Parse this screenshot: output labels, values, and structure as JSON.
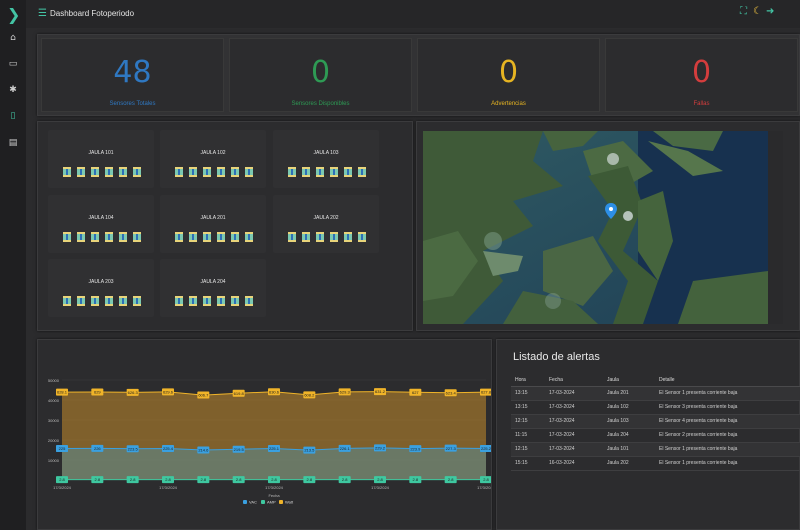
{
  "app": {
    "title": "Dashboard Fotoperiodo",
    "logo_icon": "chevron-right-logo",
    "header_actions": [
      {
        "name": "fullscreen-icon",
        "glyph": "⛶",
        "color": "#43c4a4"
      },
      {
        "name": "theme-moon-icon",
        "glyph": "☾",
        "color": "#f2c440"
      },
      {
        "name": "logout-icon",
        "glyph": "➜",
        "color": "#43c4a4"
      }
    ]
  },
  "sidebar": {
    "items": [
      {
        "icon": "home-icon",
        "glyph": "⌂",
        "active": false
      },
      {
        "icon": "monitor-icon",
        "glyph": "▭",
        "active": false
      },
      {
        "icon": "settings-icon",
        "glyph": "✱",
        "active": false
      },
      {
        "icon": "device-icon",
        "glyph": "▯",
        "active": true
      },
      {
        "icon": "report-icon",
        "glyph": "▤",
        "active": false
      }
    ]
  },
  "kpis": [
    {
      "value": "48",
      "label": "Sensores Totales",
      "color": "#2f78c2"
    },
    {
      "value": "0",
      "label": "Sensores Disponibles",
      "color": "#2e9a54"
    },
    {
      "value": "0",
      "label": "Advertencias",
      "color": "#e6b422"
    },
    {
      "value": "0",
      "label": "Fallas",
      "color": "#d43d3d"
    }
  ],
  "cages": [
    {
      "name": "JAULA 101",
      "sensors": 6
    },
    {
      "name": "JAULA 102",
      "sensors": 6
    },
    {
      "name": "JAULA 103",
      "sensors": 6
    },
    {
      "name": "JAULA 104",
      "sensors": 6
    },
    {
      "name": "JAULA 201",
      "sensors": 6
    },
    {
      "name": "JAULA 202",
      "sensors": 6
    },
    {
      "name": "JAULA 203",
      "sensors": 6
    },
    {
      "name": "JAULA 204",
      "sensors": 6
    }
  ],
  "map": {
    "marker_icon": "location-pin-icon",
    "marker_color": "#2d8fe6"
  },
  "chart_data": {
    "type": "area",
    "title": "",
    "xlabel": "Fecha",
    "ylabel": "",
    "ylim": [
      0,
      60000
    ],
    "yticks": [
      "0",
      "10000",
      "20000",
      "30000",
      "40000",
      "50000"
    ],
    "x_tick_labels": [
      "17/3/2024",
      "17/3/2024",
      "17/3/2024",
      "17/3/2024",
      "17/3/2024"
    ],
    "legend_position": "bottom",
    "series": [
      {
        "name": "VAC",
        "color": "#3aa0e0",
        "values": [
          225.0,
          226.0,
          223.5,
          225.4,
          214.6,
          219.5,
          225.1,
          213.5,
          226.1,
          229.2,
          223.9,
          227.3,
          225.2
        ]
      },
      {
        "name": "AMP",
        "color": "#3ec8a0",
        "values": [
          2.8,
          2.8,
          2.8,
          2.8,
          2.8,
          2.8,
          2.8,
          2.8,
          2.8,
          2.8,
          2.8,
          2.8,
          2.8
        ]
      },
      {
        "name": "Watt",
        "color": "#f0b429",
        "values": [
          628.1,
          629.0,
          626.3,
          629.6,
          606.7,
          619.8,
          630.6,
          608.2,
          629.3,
          631.2,
          627.0,
          623.4,
          627.8
        ]
      }
    ]
  },
  "alerts": {
    "title": "Listado de alertas",
    "columns": [
      "Hora",
      "Fecha",
      "Jaula",
      "Detalle"
    ],
    "rows": [
      [
        "13:15",
        "17-03-2024",
        "Jaula 201",
        "El Sensor 1 presenta corriente baja"
      ],
      [
        "13:15",
        "17-03-2024",
        "Jaula 102",
        "El Sensor 3 presenta corriente baja"
      ],
      [
        "12:15",
        "17-03-2024",
        "Jaula 103",
        "El Sensor 4 presenta corriente baja"
      ],
      [
        "11:15",
        "17-03-2024",
        "Jaula 204",
        "El Sensor 2 presenta corriente baja"
      ],
      [
        "12:15",
        "17-03-2024",
        "Jaula 101",
        "El Sensor 1 presenta corriente baja"
      ],
      [
        "15:15",
        "16-03-2024",
        "Jaula 202",
        "El Sensor 1 presenta corriente baja"
      ]
    ]
  }
}
